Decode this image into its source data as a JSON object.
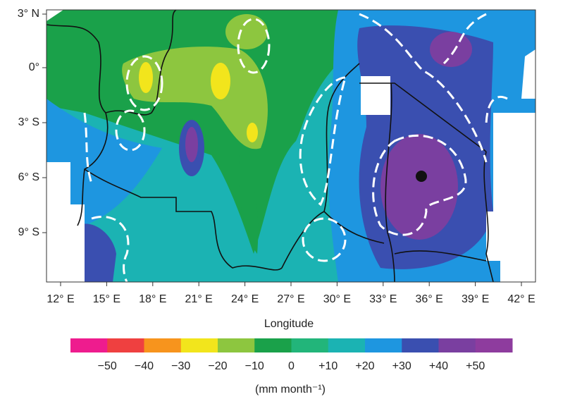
{
  "map": {
    "lat_labels": [
      "3° N",
      "0°",
      "3° S",
      "6° S",
      "9° S"
    ],
    "lon_labels": [
      "12° E",
      "15° E",
      "18° E",
      "21° E",
      "24° E",
      "27° E",
      "30° E",
      "33° E",
      "36° E",
      "39° E",
      "42° E"
    ],
    "x_label": "Longitude",
    "colorbar": {
      "colors": [
        "#ee1c8e",
        "#ef4040",
        "#f7941d",
        "#f2e51c",
        "#8dc63f",
        "#1aa14a",
        "#22b57a",
        "#1bb3b3",
        "#1e96e0",
        "#3a4fb0",
        "#7a3fa0",
        "#8e3c9e"
      ],
      "lim": [
        -60,
        60
      ],
      "ticks": [
        {
          "value": -50,
          "label": "−50"
        },
        {
          "value": -40,
          "label": "−40"
        },
        {
          "value": -30,
          "label": "−30"
        },
        {
          "value": -20,
          "label": "−20"
        },
        {
          "value": -10,
          "label": "−10"
        },
        0,
        {
          "value": 10,
          "label": "+10"
        },
        {
          "value": 20,
          "label": "+20"
        },
        {
          "value": 30,
          "label": "+30"
        },
        {
          "value": 40,
          "label": "+40"
        },
        {
          "value": 50,
          "label": "+50"
        }
      ],
      "unit_label": "(mm month⁻¹)"
    }
  }
}
